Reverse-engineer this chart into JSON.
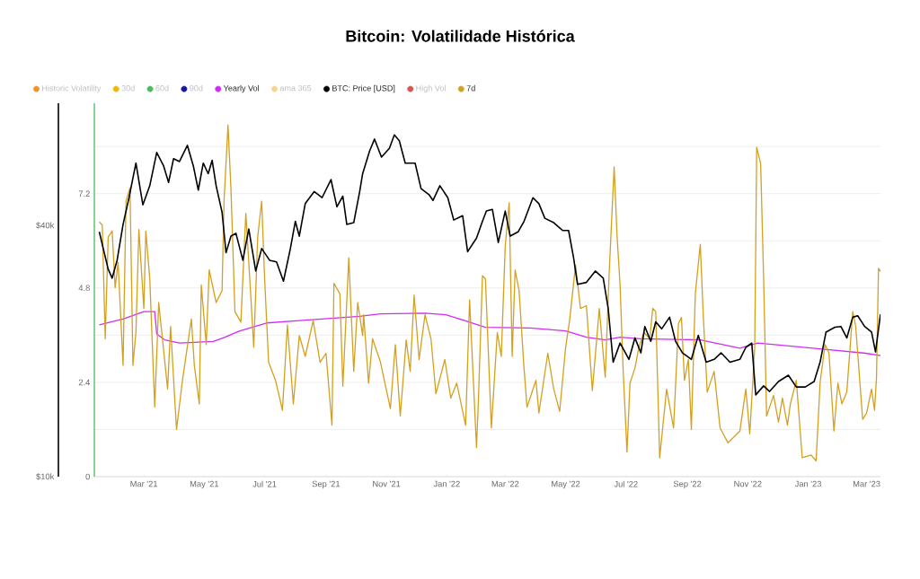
{
  "chart_data": {
    "type": "line",
    "title": "Bitcoin: Volatilidade Histórica",
    "xlim": [
      "2021-01-10",
      "2023-03-15"
    ],
    "xticks": [
      {
        "value": "2021-03-01",
        "label": "Mar '21"
      },
      {
        "value": "2021-05-01",
        "label": "May '21"
      },
      {
        "value": "2021-07-01",
        "label": "Jul '21"
      },
      {
        "value": "2021-09-01",
        "label": "Sep '21"
      },
      {
        "value": "2021-11-01",
        "label": "Nov '21"
      },
      {
        "value": "2022-01-01",
        "label": "Jan '22"
      },
      {
        "value": "2022-03-01",
        "label": "Mar '22"
      },
      {
        "value": "2022-05-01",
        "label": "May '22"
      },
      {
        "value": "2022-07-01",
        "label": "Jul '22"
      },
      {
        "value": "2022-09-01",
        "label": "Sep '22"
      },
      {
        "value": "2022-11-01",
        "label": "Nov '22"
      },
      {
        "value": "2023-01-01",
        "label": "Jan '23"
      },
      {
        "value": "2023-03-01",
        "label": "Mar '23"
      }
    ],
    "ylim": [
      0,
      9.5
    ],
    "yticks": [
      0,
      {
        "value": 1.2,
        "label": null
      },
      2.4,
      {
        "value": 3.6,
        "label": null
      },
      4.8,
      {
        "value": 6.0,
        "label": null
      },
      7.2,
      {
        "value": 8.4,
        "label": null
      }
    ],
    "y2lim": [
      10000,
      78500
    ],
    "y2ticks": [
      {
        "value": 10000,
        "label": "$10k"
      },
      {
        "value": 40000,
        "label": "$40k"
      }
    ],
    "log": "y2",
    "grid": "y",
    "legend": "top left",
    "series": [
      {
        "name": "Historic Volatility",
        "color": "#f0922b"
      },
      {
        "name": "30d",
        "color": "#f2b705"
      },
      {
        "name": "60d",
        "color": "#4cbb5d"
      },
      {
        "name": "90d",
        "color": "#1515a0"
      },
      {
        "name": "Yearly Vol",
        "color": "#d12cf5",
        "x": [
          "2021-01-15",
          "2021-02-08",
          "2021-03-01",
          "2021-03-12",
          "2021-03-14",
          "2021-03-22",
          "2021-04-06",
          "2021-05-10",
          "2021-05-22",
          "2021-06-06",
          "2021-07-03",
          "2021-08-05",
          "2021-10-05",
          "2021-10-26",
          "2021-12-10",
          "2021-12-31",
          "2022-01-19",
          "2022-02-09",
          "2022-03-26",
          "2022-05-01",
          "2022-05-22",
          "2022-06-10",
          "2022-06-25",
          "2022-07-16",
          "2022-09-14",
          "2022-10-24",
          "2022-11-11",
          "2023-01-13",
          "2023-02-28",
          "2023-03-15"
        ],
        "values": [
          3.86,
          4.01,
          4.2,
          4.2,
          3.63,
          3.48,
          3.4,
          3.44,
          3.55,
          3.71,
          3.91,
          3.97,
          4.08,
          4.14,
          4.16,
          4.12,
          3.97,
          3.8,
          3.78,
          3.71,
          3.55,
          3.48,
          3.55,
          3.51,
          3.48,
          3.27,
          3.4,
          3.25,
          3.14,
          3.08
        ]
      },
      {
        "name": "ama 365",
        "color": "#f9d48f"
      },
      {
        "name": "BTC: Price [USD]",
        "color": "#000000",
        "axis": "y2",
        "x": [
          "2021-01-15",
          "2021-01-19",
          "2021-01-24",
          "2021-01-28",
          "2021-02-02",
          "2021-02-08",
          "2021-02-14",
          "2021-02-21",
          "2021-02-28",
          "2021-03-07",
          "2021-03-14",
          "2021-03-21",
          "2021-03-26",
          "2021-03-31",
          "2021-04-06",
          "2021-04-14",
          "2021-04-20",
          "2021-04-25",
          "2021-04-30",
          "2021-05-05",
          "2021-05-09",
          "2021-05-13",
          "2021-05-19",
          "2021-05-23",
          "2021-05-28",
          "2021-06-02",
          "2021-06-09",
          "2021-06-15",
          "2021-06-22",
          "2021-06-28",
          "2021-07-06",
          "2021-07-13",
          "2021-07-20",
          "2021-07-27",
          "2021-08-01",
          "2021-08-05",
          "2021-08-11",
          "2021-08-20",
          "2021-08-28",
          "2021-09-06",
          "2021-09-12",
          "2021-09-18",
          "2021-09-22",
          "2021-09-29",
          "2021-10-05",
          "2021-10-08",
          "2021-10-15",
          "2021-10-20",
          "2021-10-27",
          "2021-11-04",
          "2021-11-09",
          "2021-11-14",
          "2021-11-20",
          "2021-11-30",
          "2021-12-06",
          "2021-12-14",
          "2021-12-18",
          "2021-12-25",
          "2022-01-02",
          "2022-01-08",
          "2022-01-17",
          "2022-01-22",
          "2022-01-31",
          "2022-02-06",
          "2022-02-10",
          "2022-02-16",
          "2022-02-22",
          "2022-03-01",
          "2022-03-06",
          "2022-03-14",
          "2022-03-20",
          "2022-03-29",
          "2022-04-04",
          "2022-04-10",
          "2022-04-19",
          "2022-04-28",
          "2022-05-04",
          "2022-05-09",
          "2022-05-13",
          "2022-05-22",
          "2022-05-31",
          "2022-06-08",
          "2022-06-13",
          "2022-06-18",
          "2022-06-25",
          "2022-07-04",
          "2022-07-10",
          "2022-07-16",
          "2022-07-20",
          "2022-07-26",
          "2022-07-31",
          "2022-08-06",
          "2022-08-14",
          "2022-08-20",
          "2022-08-27",
          "2022-09-05",
          "2022-09-12",
          "2022-09-20",
          "2022-09-28",
          "2022-10-05",
          "2022-10-14",
          "2022-10-24",
          "2022-10-30",
          "2022-11-05",
          "2022-11-09",
          "2022-11-17",
          "2022-11-23",
          "2022-12-02",
          "2022-12-12",
          "2022-12-20",
          "2022-12-29",
          "2023-01-07",
          "2023-01-13",
          "2023-01-19",
          "2023-01-28",
          "2023-02-03",
          "2023-02-09",
          "2023-02-15",
          "2023-02-20",
          "2023-02-27",
          "2023-03-06",
          "2023-03-10",
          "2023-03-15"
        ],
        "values": [
          38600,
          35200,
          31400,
          29900,
          33000,
          40200,
          46600,
          56400,
          44800,
          49800,
          59800,
          55500,
          50700,
          57800,
          56900,
          62200,
          55500,
          48600,
          56400,
          53200,
          57300,
          49800,
          43000,
          34400,
          37700,
          38300,
          33000,
          39200,
          31100,
          35200,
          33000,
          32700,
          29400,
          35200,
          40900,
          37700,
          45100,
          48200,
          46600,
          51500,
          44300,
          47000,
          40200,
          40600,
          48200,
          53200,
          60300,
          64400,
          58300,
          61200,
          65900,
          63800,
          56400,
          56400,
          49000,
          47400,
          45900,
          49800,
          46600,
          41200,
          42200,
          34600,
          37300,
          40900,
          43300,
          43700,
          36400,
          43300,
          37700,
          38600,
          40900,
          46600,
          45100,
          41600,
          40600,
          38900,
          38900,
          33500,
          28900,
          29200,
          31100,
          29900,
          25300,
          18800,
          20900,
          19100,
          21500,
          19800,
          22900,
          21100,
          23500,
          22600,
          24100,
          21100,
          19800,
          19100,
          21800,
          18800,
          19100,
          19800,
          18800,
          19100,
          20400,
          20900,
          15700,
          16500,
          16000,
          16900,
          17500,
          16400,
          16400,
          16900,
          18800,
          22200,
          22800,
          22900,
          21500,
          24100,
          24300,
          22900,
          22200,
          19900,
          24500
        ]
      },
      {
        "name": "High Vol",
        "color": "#d9534f"
      },
      {
        "name": "7d",
        "color": "#d4a020",
        "x": [
          "2021-01-15",
          "2021-01-18",
          "2021-01-21",
          "2021-01-24",
          "2021-01-28",
          "2021-01-31",
          "2021-02-03",
          "2021-02-08",
          "2021-02-11",
          "2021-02-15",
          "2021-02-18",
          "2021-02-21",
          "2021-02-24",
          "2021-03-01",
          "2021-03-03",
          "2021-03-07",
          "2021-03-12",
          "2021-03-16",
          "2021-03-25",
          "2021-03-28",
          "2021-04-03",
          "2021-04-09",
          "2021-04-18",
          "2021-04-21",
          "2021-04-26",
          "2021-04-28",
          "2021-05-03",
          "2021-05-06",
          "2021-05-13",
          "2021-05-19",
          "2021-05-21",
          "2021-05-25",
          "2021-05-28",
          "2021-06-01",
          "2021-06-07",
          "2021-06-12",
          "2021-06-16",
          "2021-06-20",
          "2021-06-24",
          "2021-06-28",
          "2021-07-01",
          "2021-07-05",
          "2021-07-12",
          "2021-07-19",
          "2021-07-24",
          "2021-07-30",
          "2021-08-05",
          "2021-08-11",
          "2021-08-19",
          "2021-08-26",
          "2021-09-01",
          "2021-09-07",
          "2021-09-09",
          "2021-09-15",
          "2021-09-18",
          "2021-09-24",
          "2021-09-29",
          "2021-10-03",
          "2021-10-08",
          "2021-10-09",
          "2021-10-14",
          "2021-10-18",
          "2021-10-26",
          "2021-11-05",
          "2021-11-10",
          "2021-11-15",
          "2021-11-21",
          "2021-11-25",
          "2021-11-29",
          "2021-12-04",
          "2021-12-10",
          "2021-12-16",
          "2021-12-21",
          "2021-12-30",
          "2022-01-05",
          "2022-01-11",
          "2022-01-20",
          "2022-01-24",
          "2022-01-31",
          "2022-02-02",
          "2022-02-06",
          "2022-02-09",
          "2022-02-15",
          "2022-02-21",
          "2022-02-25",
          "2022-03-01",
          "2022-03-05",
          "2022-03-08",
          "2022-03-11",
          "2022-03-15",
          "2022-03-20",
          "2022-03-23",
          "2022-04-01",
          "2022-04-04",
          "2022-04-13",
          "2022-04-19",
          "2022-04-25",
          "2022-05-01",
          "2022-05-05",
          "2022-05-11",
          "2022-05-16",
          "2022-05-22",
          "2022-05-28",
          "2022-06-04",
          "2022-06-10",
          "2022-06-14",
          "2022-06-19",
          "2022-06-22",
          "2022-06-25",
          "2022-06-28",
          "2022-07-02",
          "2022-07-05",
          "2022-07-10",
          "2022-07-14",
          "2022-07-19",
          "2022-07-25",
          "2022-07-28",
          "2022-07-31",
          "2022-08-04",
          "2022-08-11",
          "2022-08-18",
          "2022-08-23",
          "2022-08-26",
          "2022-08-29",
          "2022-09-02",
          "2022-09-05",
          "2022-09-09",
          "2022-09-14",
          "2022-09-17",
          "2022-09-21",
          "2022-09-28",
          "2022-10-04",
          "2022-10-12",
          "2022-10-18",
          "2022-10-24",
          "2022-10-30",
          "2022-11-03",
          "2022-11-08",
          "2022-11-10",
          "2022-11-14",
          "2022-11-17",
          "2022-11-20",
          "2022-11-27",
          "2022-12-02",
          "2022-12-06",
          "2022-12-11",
          "2022-12-14",
          "2022-12-20",
          "2022-12-26",
          "2023-01-04",
          "2023-01-09",
          "2023-01-13",
          "2023-01-18",
          "2023-01-22",
          "2023-01-27",
          "2023-01-31",
          "2023-02-04",
          "2023-02-09",
          "2023-02-15",
          "2023-02-18",
          "2023-02-25",
          "2023-03-01",
          "2023-03-06",
          "2023-03-09",
          "2023-03-11",
          "2023-03-13",
          "2023-03-15"
        ],
        "values": [
          6.48,
          6.4,
          3.51,
          6.1,
          6.25,
          4.81,
          5.45,
          2.83,
          7.01,
          7.35,
          2.83,
          3.67,
          6.29,
          4.28,
          6.25,
          5.03,
          1.77,
          4.43,
          2.23,
          3.82,
          1.2,
          2.45,
          4.01,
          2.83,
          1.85,
          4.88,
          3.36,
          5.26,
          4.43,
          4.73,
          7.01,
          8.95,
          7.31,
          4.2,
          3.93,
          6.7,
          5.03,
          3.29,
          6.1,
          7.01,
          5.03,
          2.91,
          2.45,
          1.69,
          3.86,
          1.85,
          3.59,
          3.06,
          3.97,
          2.91,
          3.14,
          1.31,
          4.92,
          4.65,
          2.3,
          5.57,
          2.68,
          4.43,
          3.59,
          4.12,
          2.38,
          3.51,
          2.91,
          1.73,
          3.36,
          1.54,
          3.48,
          2.68,
          4.62,
          2.98,
          4.12,
          3.51,
          2.11,
          2.98,
          2.0,
          2.38,
          1.31,
          4.5,
          0.74,
          2.0,
          5.11,
          5.03,
          1.24,
          3.67,
          3.06,
          5.87,
          6.97,
          3.06,
          5.26,
          4.73,
          2.76,
          1.77,
          2.45,
          1.62,
          3.14,
          2.23,
          1.66,
          3.29,
          3.97,
          5.38,
          4.28,
          4.35,
          2.19,
          4.28,
          2.53,
          5.19,
          7.88,
          6.1,
          4.88,
          2.76,
          0.63,
          2.38,
          2.76,
          3.29,
          3.67,
          3.51,
          4.28,
          4.2,
          0.48,
          2.23,
          1.24,
          3.9,
          4.05,
          2.45,
          2.98,
          1.2,
          4.65,
          5.91,
          4.12,
          2.15,
          2.68,
          1.24,
          0.86,
          1.01,
          1.16,
          2.23,
          1.09,
          3.29,
          8.38,
          7.96,
          5.03,
          1.54,
          2.07,
          1.39,
          2.0,
          1.31,
          1.85,
          2.45,
          0.48,
          0.55,
          0.4,
          2.38,
          3.36,
          3.14,
          1.16,
          2.38,
          1.85,
          2.15,
          4.2,
          3.82,
          1.46,
          1.62,
          2.23,
          1.69,
          2.53,
          5.3,
          5.22
        ]
      }
    ]
  }
}
